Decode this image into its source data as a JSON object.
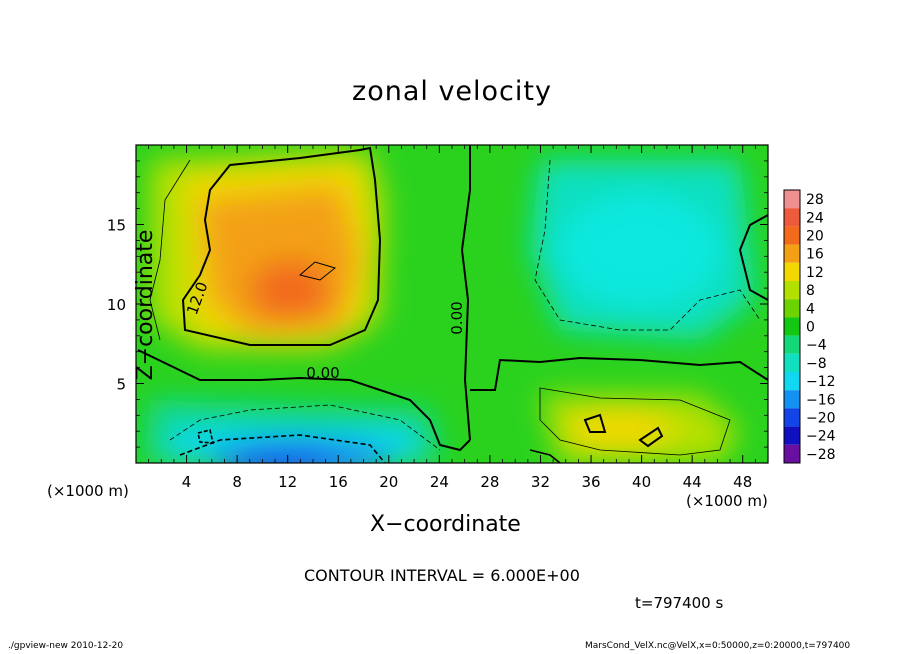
{
  "chart_data": {
    "type": "heatmap",
    "title": "zonal velocity",
    "xlabel": "X−coordinate",
    "ylabel": "Z−coordinate",
    "x_unit_left": "(×1000 m)",
    "x_unit_right": "(×1000 m)",
    "xlim": [
      0,
      50
    ],
    "ylim": [
      0,
      20
    ],
    "x_ticks": [
      4,
      8,
      12,
      16,
      20,
      24,
      28,
      32,
      36,
      40,
      44,
      48
    ],
    "x_tick_labels": [
      "4",
      "8",
      "12",
      "16",
      "20",
      "24",
      "28",
      "32",
      "36",
      "40",
      "44",
      "48"
    ],
    "y_ticks": [
      5,
      10,
      15
    ],
    "y_tick_labels": [
      "5",
      "10",
      "15"
    ],
    "colorbar": {
      "levels": [
        28,
        24,
        20,
        16,
        12,
        8,
        4,
        0,
        -4,
        -8,
        -12,
        -16,
        -20,
        -24,
        -28
      ],
      "labels": [
        "28",
        "24",
        "20",
        "16",
        "12",
        "8",
        "4",
        "0",
        "−4",
        "−8",
        "−12",
        "−16",
        "−20",
        "−24",
        "−28"
      ],
      "colors": [
        "#f09090",
        "#ee5a3c",
        "#f26a1c",
        "#f3a014",
        "#f2d800",
        "#b4e000",
        "#6cd200",
        "#12c812",
        "#12d87a",
        "#10e0c0",
        "#10d8f0",
        "#1490f0",
        "#1244e8",
        "#1010c0",
        "#6a10a0"
      ]
    },
    "field": [
      {
        "x": 14,
        "y": 12,
        "value": 17
      },
      {
        "x": 11,
        "y": 9,
        "value": 15
      },
      {
        "x": 10,
        "y": 15,
        "value": 12
      },
      {
        "x": 10,
        "y": 1,
        "value": -16
      },
      {
        "x": 40,
        "y": 11,
        "value": -9
      },
      {
        "x": 39,
        "y": 2.5,
        "value": 9
      },
      {
        "x": 28,
        "y": 10,
        "value": 1
      }
    ],
    "contour_labels": [
      "12.0",
      "0.00",
      "0.00"
    ],
    "contour_interval_text": "CONTOUR INTERVAL = 6.000E+00",
    "time_text": "t=797400 s"
  },
  "footer": {
    "left": "./gpview-new  2010-12-20",
    "right": "MarsCond_VelX.nc@VelX,x=0:50000,z=0:20000,t=797400"
  }
}
